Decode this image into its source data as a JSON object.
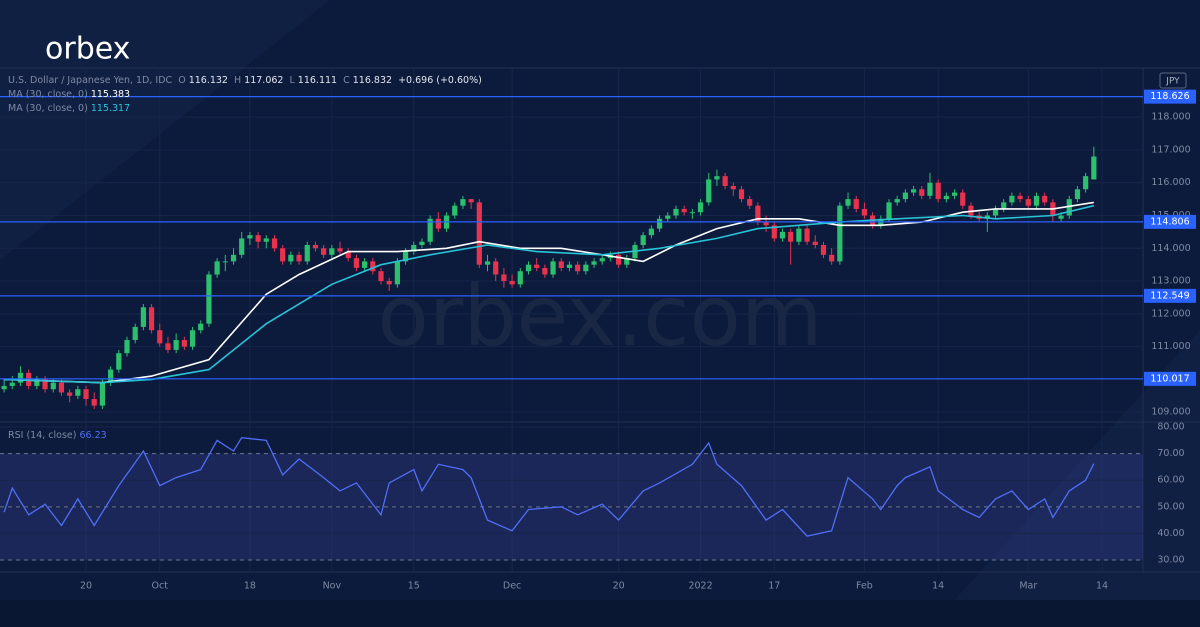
{
  "logo": "orbex",
  "watermark": "orbex.com",
  "chart_data": [
    {
      "type": "candlestick",
      "title": "U.S. Dollar / Japanese Yen, 1D, IDC",
      "ohlc_fields": [
        {
          "label": "O",
          "value": 116.132
        },
        {
          "label": "H",
          "value": 117.062
        },
        {
          "label": "L",
          "value": 116.111
        },
        {
          "label": "C",
          "value": 116.832
        }
      ],
      "change": "+0.696 (+0.60%)",
      "unit": "JPY",
      "colors": {
        "up": "#2bbf6e",
        "down": "#e8334f"
      },
      "ohlc": [
        [
          109.7,
          110.0,
          109.6,
          109.8
        ],
        [
          109.8,
          110.1,
          109.7,
          109.9
        ],
        [
          109.9,
          110.4,
          109.8,
          110.2
        ],
        [
          110.2,
          110.3,
          109.7,
          109.8
        ],
        [
          109.8,
          110.1,
          109.7,
          110.0
        ],
        [
          110.0,
          110.1,
          109.6,
          109.7
        ],
        [
          109.7,
          110.0,
          109.6,
          109.9
        ],
        [
          109.9,
          110.0,
          109.5,
          109.6
        ],
        [
          109.6,
          109.7,
          109.3,
          109.5
        ],
        [
          109.5,
          109.8,
          109.4,
          109.7
        ],
        [
          109.7,
          109.8,
          109.2,
          109.4
        ],
        [
          109.4,
          109.6,
          109.1,
          109.2
        ],
        [
          109.2,
          110.0,
          109.1,
          109.9
        ],
        [
          109.9,
          110.4,
          109.8,
          110.3
        ],
        [
          110.3,
          110.9,
          110.2,
          110.8
        ],
        [
          110.8,
          111.3,
          110.7,
          111.2
        ],
        [
          111.2,
          111.7,
          111.1,
          111.6
        ],
        [
          111.6,
          112.3,
          111.5,
          112.2
        ],
        [
          112.2,
          112.3,
          111.4,
          111.5
        ],
        [
          111.5,
          111.7,
          111.0,
          111.1
        ],
        [
          111.1,
          111.3,
          110.8,
          110.9
        ],
        [
          110.9,
          111.4,
          110.8,
          111.2
        ],
        [
          111.2,
          111.3,
          110.9,
          111.0
        ],
        [
          111.0,
          111.6,
          110.9,
          111.5
        ],
        [
          111.5,
          111.8,
          111.4,
          111.7
        ],
        [
          111.7,
          113.3,
          111.6,
          113.2
        ],
        [
          113.2,
          113.7,
          113.1,
          113.6
        ],
        [
          113.6,
          113.8,
          113.3,
          113.6
        ],
        [
          113.6,
          114.0,
          113.5,
          113.8
        ],
        [
          113.8,
          114.5,
          113.7,
          114.3
        ],
        [
          114.3,
          114.5,
          114.1,
          114.4
        ],
        [
          114.4,
          114.5,
          114.0,
          114.2
        ],
        [
          114.2,
          114.4,
          114.0,
          114.3
        ],
        [
          114.3,
          114.4,
          113.9,
          114.0
        ],
        [
          114.0,
          114.1,
          113.5,
          113.6
        ],
        [
          113.6,
          113.9,
          113.5,
          113.8
        ],
        [
          113.8,
          113.9,
          113.5,
          113.6
        ],
        [
          113.6,
          114.2,
          113.5,
          114.1
        ],
        [
          114.1,
          114.2,
          113.9,
          114.0
        ],
        [
          114.0,
          114.1,
          113.7,
          113.8
        ],
        [
          113.8,
          114.1,
          113.7,
          114.0
        ],
        [
          114.0,
          114.2,
          113.8,
          113.9
        ],
        [
          113.9,
          114.0,
          113.6,
          113.7
        ],
        [
          113.7,
          113.8,
          113.3,
          113.4
        ],
        [
          113.4,
          113.7,
          113.3,
          113.6
        ],
        [
          113.6,
          113.7,
          113.2,
          113.3
        ],
        [
          113.3,
          113.4,
          112.9,
          113.0
        ],
        [
          113.0,
          113.1,
          112.7,
          112.9
        ],
        [
          112.9,
          113.7,
          112.8,
          113.6
        ],
        [
          113.6,
          114.0,
          113.5,
          113.9
        ],
        [
          113.9,
          114.2,
          113.8,
          114.1
        ],
        [
          114.1,
          114.3,
          114.0,
          114.2
        ],
        [
          114.2,
          115.0,
          114.1,
          114.9
        ],
        [
          114.9,
          115.1,
          114.5,
          114.6
        ],
        [
          114.6,
          115.1,
          114.5,
          115.0
        ],
        [
          115.0,
          115.4,
          114.9,
          115.3
        ],
        [
          115.3,
          115.6,
          115.2,
          115.5
        ],
        [
          115.5,
          115.5,
          115.2,
          115.4
        ],
        [
          115.4,
          115.5,
          113.4,
          113.5
        ],
        [
          113.5,
          113.8,
          113.3,
          113.6
        ],
        [
          113.6,
          113.7,
          113.0,
          113.2
        ],
        [
          113.2,
          113.4,
          112.8,
          113.0
        ],
        [
          113.0,
          113.2,
          112.8,
          112.9
        ],
        [
          112.9,
          113.4,
          112.8,
          113.3
        ],
        [
          113.3,
          113.6,
          113.2,
          113.5
        ],
        [
          113.5,
          113.7,
          113.3,
          113.4
        ],
        [
          113.4,
          113.5,
          113.1,
          113.2
        ],
        [
          113.2,
          113.7,
          113.1,
          113.6
        ],
        [
          113.6,
          113.7,
          113.3,
          113.4
        ],
        [
          113.4,
          113.6,
          113.3,
          113.5
        ],
        [
          113.5,
          113.6,
          113.2,
          113.3
        ],
        [
          113.3,
          113.6,
          113.2,
          113.5
        ],
        [
          113.5,
          113.7,
          113.4,
          113.6
        ],
        [
          113.6,
          113.8,
          113.5,
          113.7
        ],
        [
          113.7,
          113.9,
          113.6,
          113.8
        ],
        [
          113.8,
          113.9,
          113.4,
          113.5
        ],
        [
          113.5,
          113.8,
          113.4,
          113.7
        ],
        [
          113.7,
          114.2,
          113.6,
          114.1
        ],
        [
          114.1,
          114.5,
          114.0,
          114.4
        ],
        [
          114.4,
          114.7,
          114.3,
          114.6
        ],
        [
          114.6,
          115.0,
          114.5,
          114.9
        ],
        [
          114.9,
          115.1,
          114.8,
          115.0
        ],
        [
          115.0,
          115.3,
          114.9,
          115.2
        ],
        [
          115.2,
          115.3,
          115.0,
          115.1
        ],
        [
          115.1,
          115.2,
          114.9,
          115.1
        ],
        [
          115.1,
          115.5,
          115.0,
          115.4
        ],
        [
          115.4,
          116.3,
          115.3,
          116.1
        ],
        [
          116.1,
          116.4,
          115.9,
          116.2
        ],
        [
          116.2,
          116.3,
          115.8,
          115.9
        ],
        [
          115.9,
          116.0,
          115.6,
          115.8
        ],
        [
          115.8,
          115.9,
          115.4,
          115.5
        ],
        [
          115.5,
          115.6,
          115.2,
          115.3
        ],
        [
          115.3,
          115.4,
          114.7,
          114.8
        ],
        [
          114.8,
          115.0,
          114.5,
          114.7
        ],
        [
          114.7,
          114.8,
          114.2,
          114.3
        ],
        [
          114.3,
          114.6,
          114.2,
          114.5
        ],
        [
          114.5,
          114.6,
          113.5,
          114.2
        ],
        [
          114.2,
          114.7,
          114.1,
          114.6
        ],
        [
          114.6,
          114.7,
          114.1,
          114.2
        ],
        [
          114.2,
          114.4,
          114.0,
          114.1
        ],
        [
          114.1,
          114.2,
          113.7,
          113.8
        ],
        [
          113.8,
          114.0,
          113.5,
          113.6
        ],
        [
          113.6,
          115.4,
          113.5,
          115.3
        ],
        [
          115.3,
          115.7,
          115.2,
          115.5
        ],
        [
          115.5,
          115.6,
          115.1,
          115.2
        ],
        [
          115.2,
          115.4,
          114.9,
          115.0
        ],
        [
          115.0,
          115.1,
          114.6,
          114.7
        ],
        [
          114.7,
          115.0,
          114.6,
          114.9
        ],
        [
          114.9,
          115.5,
          114.8,
          115.4
        ],
        [
          115.4,
          115.6,
          115.3,
          115.5
        ],
        [
          115.5,
          115.8,
          115.4,
          115.7
        ],
        [
          115.7,
          115.9,
          115.6,
          115.8
        ],
        [
          115.8,
          115.9,
          115.5,
          115.6
        ],
        [
          115.6,
          116.3,
          115.5,
          116.0
        ],
        [
          116.0,
          116.1,
          115.4,
          115.5
        ],
        [
          115.5,
          115.7,
          115.4,
          115.6
        ],
        [
          115.6,
          115.8,
          115.5,
          115.7
        ],
        [
          115.7,
          115.8,
          115.2,
          115.3
        ],
        [
          115.3,
          115.4,
          114.9,
          115.0
        ],
        [
          115.0,
          115.1,
          114.8,
          114.9
        ],
        [
          114.9,
          115.1,
          114.5,
          115.0
        ],
        [
          115.0,
          115.3,
          114.9,
          115.2
        ],
        [
          115.2,
          115.5,
          115.1,
          115.4
        ],
        [
          115.4,
          115.7,
          115.3,
          115.6
        ],
        [
          115.6,
          115.7,
          115.4,
          115.5
        ],
        [
          115.5,
          115.6,
          115.2,
          115.3
        ],
        [
          115.3,
          115.7,
          115.2,
          115.6
        ],
        [
          115.6,
          115.7,
          115.3,
          115.4
        ],
        [
          115.4,
          115.5,
          114.8,
          115.0
        ],
        [
          114.9,
          115.1,
          114.8,
          115.0
        ],
        [
          115.0,
          115.6,
          114.9,
          115.5
        ],
        [
          115.5,
          115.9,
          115.4,
          115.8
        ],
        [
          115.8,
          116.3,
          115.7,
          116.2
        ],
        [
          116.1,
          117.1,
          116.1,
          116.8
        ]
      ],
      "series": [
        {
          "name": "MA (30, close, 0)",
          "last": 115.383,
          "color": "#ffffff",
          "x": [
            0,
            12,
            18,
            25,
            32,
            36,
            42,
            48,
            54,
            58,
            63,
            68,
            73,
            78,
            82,
            87,
            92,
            97,
            102,
            107,
            112,
            117,
            121,
            128,
            133
          ],
          "values": [
            110.0,
            109.9,
            110.1,
            110.6,
            112.6,
            113.2,
            113.9,
            113.9,
            114.0,
            114.2,
            114.0,
            114.0,
            113.8,
            113.6,
            114.1,
            114.6,
            114.9,
            114.9,
            114.7,
            114.7,
            114.8,
            115.1,
            115.2,
            115.2,
            115.4
          ]
        },
        {
          "name": "MA (30, close, 0)",
          "last": 115.317,
          "color": "#29c3d8",
          "x": [
            0,
            12,
            18,
            25,
            32,
            40,
            46,
            52,
            59,
            65,
            73,
            80,
            87,
            92,
            97,
            102,
            109,
            117,
            121,
            128,
            133
          ],
          "values": [
            110.0,
            109.9,
            110.0,
            110.3,
            111.7,
            112.9,
            113.5,
            113.8,
            114.1,
            113.9,
            113.8,
            114.0,
            114.3,
            114.6,
            114.7,
            114.8,
            114.9,
            115.0,
            114.9,
            115.0,
            115.3
          ]
        }
      ],
      "levels": [
        118.626,
        114.806,
        112.549,
        110.017
      ],
      "level_color": "#2962ff",
      "xlim": [
        -0.5,
        139
      ],
      "xticks": [
        {
          "value": 10,
          "label": "20"
        },
        {
          "value": 19,
          "label": "Oct"
        },
        {
          "value": 30,
          "label": "18"
        },
        {
          "value": 40,
          "label": "Nov"
        },
        {
          "value": 50,
          "label": "15"
        },
        {
          "value": 62,
          "label": "Dec"
        },
        {
          "value": 75,
          "label": "20"
        },
        {
          "value": 85,
          "label": "2022"
        },
        {
          "value": 94,
          "label": "17"
        },
        {
          "value": 105,
          "label": "Feb"
        },
        {
          "value": 114,
          "label": "14"
        },
        {
          "value": 125,
          "label": "Mar"
        },
        {
          "value": 134,
          "label": "14"
        }
      ],
      "ylim": [
        108.7,
        119.5
      ],
      "yticks": [
        {
          "value": 109,
          "label": "109.000"
        },
        {
          "value": 110,
          "label": "110.000"
        },
        {
          "value": 111,
          "label": "111.000"
        },
        {
          "value": 112,
          "label": "112.000"
        },
        {
          "value": 113,
          "label": "113.000"
        },
        {
          "value": 114,
          "label": "114.000"
        },
        {
          "value": 115,
          "label": "115.000"
        },
        {
          "value": 116,
          "label": "116.000"
        },
        {
          "value": 117,
          "label": "117.000"
        },
        {
          "value": 118,
          "label": "118.000"
        }
      ]
    },
    {
      "type": "line",
      "title": "RSI (14, close)",
      "last": 66.23,
      "color": "#4f6ef7",
      "x": [
        0,
        1,
        3,
        5,
        7,
        9,
        11,
        14,
        17,
        19,
        21,
        24,
        26,
        28,
        29,
        32,
        34,
        36,
        39,
        41,
        43,
        46,
        47,
        50,
        51,
        53,
        56,
        57,
        59,
        62,
        64,
        68,
        70,
        73,
        75,
        78,
        80,
        84,
        86,
        87,
        90,
        93,
        95,
        98,
        101,
        103,
        106,
        107,
        109,
        110,
        113,
        114,
        117,
        119,
        121,
        123,
        125,
        127,
        128,
        130,
        132,
        133
      ],
      "values": [
        48,
        57,
        47,
        51,
        43,
        53,
        43,
        58,
        71,
        58,
        61,
        64,
        75,
        71,
        76,
        75,
        62,
        68,
        61,
        56,
        59,
        47,
        59,
        64,
        56,
        66,
        64,
        61,
        45,
        41,
        49,
        50,
        47,
        51,
        45,
        56,
        59,
        66,
        74,
        66,
        58,
        45,
        49,
        39,
        41,
        61,
        53,
        49,
        58,
        61,
        65,
        56,
        49,
        46,
        53,
        56,
        49,
        53,
        46,
        56,
        60,
        66.23
      ],
      "band": [
        30,
        70
      ],
      "band_color": "#3a3f8f",
      "guides": [
        30,
        50,
        70
      ],
      "ylim": [
        25.5,
        81.9
      ],
      "yticks": [
        {
          "value": 30,
          "label": "30.00"
        },
        {
          "value": 40,
          "label": "40.00"
        },
        {
          "value": 50,
          "label": "50.00"
        },
        {
          "value": 60,
          "label": "60.00"
        },
        {
          "value": 70,
          "label": "70.00"
        },
        {
          "value": 80,
          "label": "80.00"
        }
      ]
    }
  ]
}
